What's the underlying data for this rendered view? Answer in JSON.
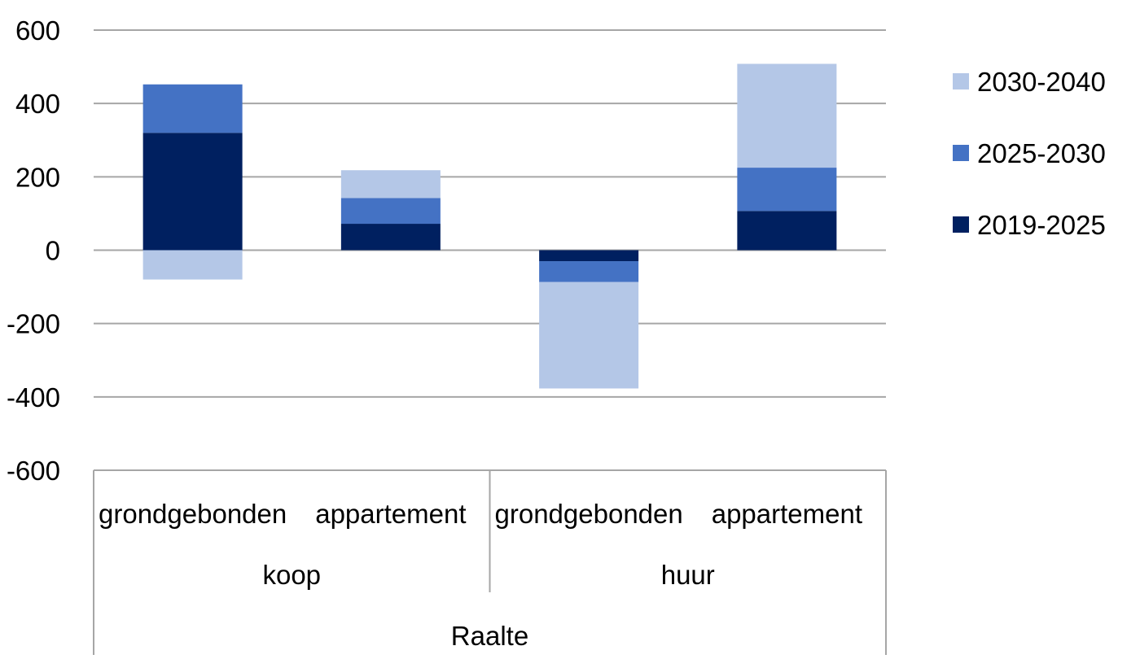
{
  "chart_data": {
    "type": "bar",
    "stacked": true,
    "title": "",
    "xlabel": "",
    "ylabel": "",
    "ylim": [
      -600,
      600
    ],
    "yticks": [
      600,
      400,
      200,
      0,
      -200,
      -400,
      -600
    ],
    "ytick_labels": [
      "600",
      "400",
      "200",
      "0",
      "-200",
      "-400",
      "-600"
    ],
    "grid": true,
    "legend_position": "right",
    "categories": [
      "grondgebonden",
      "appartement",
      "grondgebonden",
      "appartement"
    ],
    "groups": [
      {
        "label": "koop",
        "categories": [
          0,
          1
        ]
      },
      {
        "label": "huur",
        "categories": [
          2,
          3
        ]
      }
    ],
    "region": "Raalte",
    "series": [
      {
        "name": "2019-2025",
        "color": "#002060",
        "values": [
          320,
          72,
          -30,
          107
        ]
      },
      {
        "name": "2025-2030",
        "color": "#4472C4",
        "values": [
          132,
          70,
          -57,
          118
        ]
      },
      {
        "name": "2030-2040",
        "color": "#B4C7E7",
        "values": [
          -80,
          76,
          -290,
          283
        ]
      }
    ],
    "legend_order": [
      "2030-2040",
      "2025-2030",
      "2019-2025"
    ]
  }
}
